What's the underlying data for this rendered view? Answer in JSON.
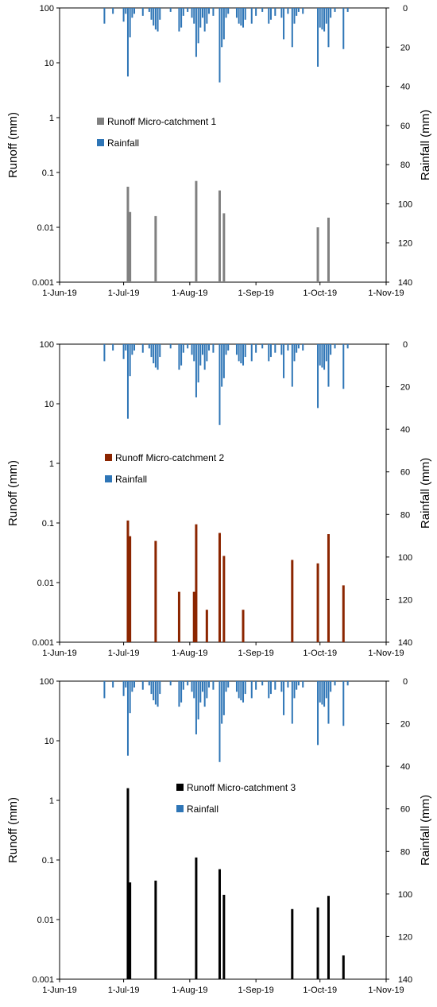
{
  "chart_data": [
    {
      "type": "bar",
      "ylabel": "Runoff (mm)",
      "y2label": "Rainfall (mm)",
      "yscale": "log",
      "ylim": [
        0.001,
        100
      ],
      "y2lim": [
        0,
        140
      ],
      "y2_inverted": true,
      "xlim": [
        "2019-06-01",
        "2019-11-01"
      ],
      "xticks": [
        "1-Jun-19",
        "1-Jul-19",
        "1-Aug-19",
        "1-Sep-19",
        "1-Oct-19",
        "1-Nov-19"
      ],
      "yticks": [
        "0.001",
        "0.01",
        "0.1",
        "1",
        "10",
        "100"
      ],
      "y2ticks": [
        "0",
        "20",
        "40",
        "60",
        "80",
        "100",
        "120",
        "140"
      ],
      "legend_position": "center-left",
      "series": [
        {
          "name": "Runoff Micro-catchment 1",
          "color": "#808080",
          "axis": "left",
          "points": [
            {
              "date": "2019-07-03",
              "value": 0.055
            },
            {
              "date": "2019-07-04",
              "value": 0.019
            },
            {
              "date": "2019-07-16",
              "value": 0.016
            },
            {
              "date": "2019-08-04",
              "value": 0.07
            },
            {
              "date": "2019-08-15",
              "value": 0.047
            },
            {
              "date": "2019-08-17",
              "value": 0.018
            },
            {
              "date": "2019-09-30",
              "value": 0.01
            },
            {
              "date": "2019-10-05",
              "value": 0.015
            }
          ]
        },
        {
          "name": "Rainfall",
          "color": "#2E75B6",
          "axis": "right",
          "points": []
        }
      ]
    },
    {
      "type": "bar",
      "ylabel": "Runoff (mm)",
      "y2label": "Rainfall (mm)",
      "yscale": "log",
      "ylim": [
        0.001,
        100
      ],
      "y2lim": [
        0,
        140
      ],
      "y2_inverted": true,
      "xlim": [
        "2019-06-01",
        "2019-11-01"
      ],
      "xticks": [
        "1-Jun-19",
        "1-Jul-19",
        "1-Aug-19",
        "1-Sep-19",
        "1-Oct-19",
        "1-Nov-19"
      ],
      "yticks": [
        "0.001",
        "0.01",
        "0.1",
        "1",
        "10",
        "100"
      ],
      "y2ticks": [
        "0",
        "20",
        "40",
        "60",
        "80",
        "100",
        "120",
        "140"
      ],
      "legend_position": "center-left",
      "series": [
        {
          "name": "Runoff Micro-catchment 2",
          "color": "#8B2500",
          "axis": "left",
          "points": [
            {
              "date": "2019-07-03",
              "value": 0.11
            },
            {
              "date": "2019-07-04",
              "value": 0.06
            },
            {
              "date": "2019-07-16",
              "value": 0.05
            },
            {
              "date": "2019-07-27",
              "value": 0.007
            },
            {
              "date": "2019-08-03",
              "value": 0.007
            },
            {
              "date": "2019-08-04",
              "value": 0.095
            },
            {
              "date": "2019-08-09",
              "value": 0.0035
            },
            {
              "date": "2019-08-15",
              "value": 0.068
            },
            {
              "date": "2019-08-17",
              "value": 0.028
            },
            {
              "date": "2019-08-26",
              "value": 0.0035
            },
            {
              "date": "2019-09-18",
              "value": 0.024
            },
            {
              "date": "2019-09-30",
              "value": 0.021
            },
            {
              "date": "2019-10-05",
              "value": 0.065
            },
            {
              "date": "2019-10-12",
              "value": 0.009
            }
          ]
        },
        {
          "name": "Rainfall",
          "color": "#2E75B6",
          "axis": "right",
          "points": []
        }
      ]
    },
    {
      "type": "bar",
      "ylabel": "Runoff (mm)",
      "y2label": "Rainfall (mm)",
      "yscale": "log",
      "ylim": [
        0.001,
        100
      ],
      "y2lim": [
        0,
        140
      ],
      "y2_inverted": true,
      "xlim": [
        "2019-06-01",
        "2019-11-01"
      ],
      "xticks": [
        "1-Jun-19",
        "1-Jul-19",
        "1-Aug-19",
        "1-Sep-19",
        "1-Oct-19",
        "1-Nov-19"
      ],
      "yticks": [
        "0.001",
        "0.01",
        "0.1",
        "1",
        "10",
        "100"
      ],
      "y2ticks": [
        "0",
        "20",
        "40",
        "60",
        "80",
        "100",
        "120",
        "140"
      ],
      "legend_position": "center",
      "series": [
        {
          "name": "Runoff Micro-catchment 3",
          "color": "#000000",
          "axis": "left",
          "points": [
            {
              "date": "2019-07-03",
              "value": 1.6
            },
            {
              "date": "2019-07-04",
              "value": 0.042
            },
            {
              "date": "2019-07-16",
              "value": 0.045
            },
            {
              "date": "2019-08-04",
              "value": 0.11
            },
            {
              "date": "2019-08-15",
              "value": 0.07
            },
            {
              "date": "2019-08-17",
              "value": 0.026
            },
            {
              "date": "2019-09-18",
              "value": 0.015
            },
            {
              "date": "2019-09-30",
              "value": 0.016
            },
            {
              "date": "2019-10-05",
              "value": 0.025
            },
            {
              "date": "2019-10-12",
              "value": 0.0025
            }
          ]
        },
        {
          "name": "Rainfall",
          "color": "#2E75B6",
          "axis": "right",
          "points": []
        }
      ]
    }
  ],
  "rainfall": [
    {
      "date": "2019-06-22",
      "value": 8
    },
    {
      "date": "2019-06-26",
      "value": 3
    },
    {
      "date": "2019-07-01",
      "value": 7
    },
    {
      "date": "2019-07-02",
      "value": 3
    },
    {
      "date": "2019-07-03",
      "value": 35
    },
    {
      "date": "2019-07-04",
      "value": 15
    },
    {
      "date": "2019-07-05",
      "value": 5
    },
    {
      "date": "2019-07-06",
      "value": 3
    },
    {
      "date": "2019-07-10",
      "value": 4
    },
    {
      "date": "2019-07-13",
      "value": 2
    },
    {
      "date": "2019-07-14",
      "value": 6
    },
    {
      "date": "2019-07-15",
      "value": 9
    },
    {
      "date": "2019-07-16",
      "value": 11
    },
    {
      "date": "2019-07-17",
      "value": 12
    },
    {
      "date": "2019-07-18",
      "value": 6
    },
    {
      "date": "2019-07-23",
      "value": 2
    },
    {
      "date": "2019-07-27",
      "value": 12
    },
    {
      "date": "2019-07-28",
      "value": 10
    },
    {
      "date": "2019-07-29",
      "value": 4
    },
    {
      "date": "2019-07-31",
      "value": 2
    },
    {
      "date": "2019-08-02",
      "value": 5
    },
    {
      "date": "2019-08-03",
      "value": 8
    },
    {
      "date": "2019-08-04",
      "value": 25
    },
    {
      "date": "2019-08-05",
      "value": 18
    },
    {
      "date": "2019-08-06",
      "value": 10
    },
    {
      "date": "2019-08-07",
      "value": 5
    },
    {
      "date": "2019-08-08",
      "value": 12
    },
    {
      "date": "2019-08-09",
      "value": 8
    },
    {
      "date": "2019-08-10",
      "value": 3
    },
    {
      "date": "2019-08-12",
      "value": 4
    },
    {
      "date": "2019-08-15",
      "value": 38
    },
    {
      "date": "2019-08-16",
      "value": 20
    },
    {
      "date": "2019-08-17",
      "value": 16
    },
    {
      "date": "2019-08-18",
      "value": 5
    },
    {
      "date": "2019-08-19",
      "value": 3
    },
    {
      "date": "2019-08-23",
      "value": 5
    },
    {
      "date": "2019-08-24",
      "value": 8
    },
    {
      "date": "2019-08-25",
      "value": 9
    },
    {
      "date": "2019-08-26",
      "value": 10
    },
    {
      "date": "2019-08-27",
      "value": 6
    },
    {
      "date": "2019-08-30",
      "value": 8
    },
    {
      "date": "2019-09-01",
      "value": 4
    },
    {
      "date": "2019-09-04",
      "value": 2
    },
    {
      "date": "2019-09-07",
      "value": 8
    },
    {
      "date": "2019-09-08",
      "value": 6
    },
    {
      "date": "2019-09-10",
      "value": 4
    },
    {
      "date": "2019-09-13",
      "value": 5
    },
    {
      "date": "2019-09-14",
      "value": 16
    },
    {
      "date": "2019-09-16",
      "value": 3
    },
    {
      "date": "2019-09-18",
      "value": 20
    },
    {
      "date": "2019-09-19",
      "value": 8
    },
    {
      "date": "2019-09-20",
      "value": 4
    },
    {
      "date": "2019-09-21",
      "value": 2
    },
    {
      "date": "2019-09-23",
      "value": 3
    },
    {
      "date": "2019-09-30",
      "value": 30
    },
    {
      "date": "2019-10-01",
      "value": 10
    },
    {
      "date": "2019-10-02",
      "value": 11
    },
    {
      "date": "2019-10-03",
      "value": 12
    },
    {
      "date": "2019-10-04",
      "value": 8
    },
    {
      "date": "2019-10-05",
      "value": 20
    },
    {
      "date": "2019-10-06",
      "value": 5
    },
    {
      "date": "2019-10-08",
      "value": 2
    },
    {
      "date": "2019-10-12",
      "value": 21
    },
    {
      "date": "2019-10-14",
      "value": 2
    }
  ]
}
